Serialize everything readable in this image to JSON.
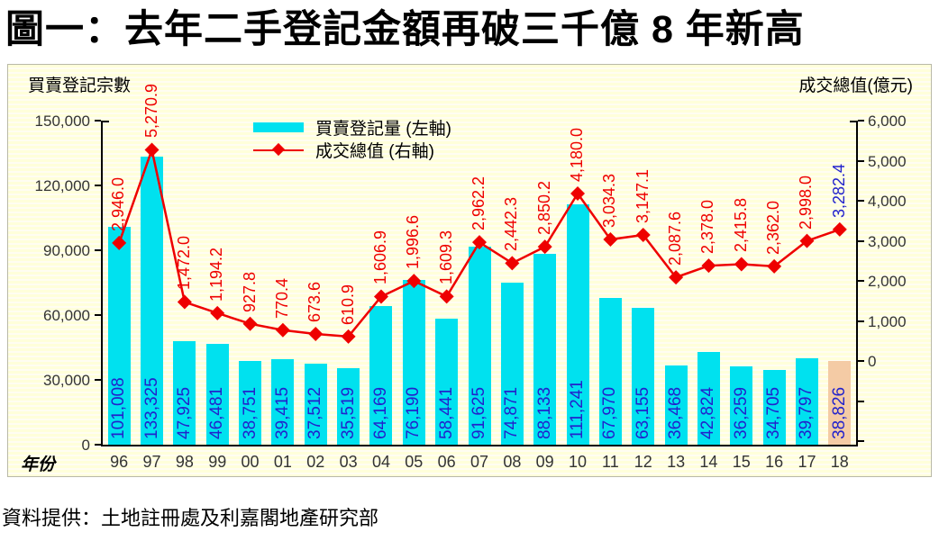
{
  "title": "圖一：去年二手登記金額再破三千億 8 年新高",
  "source_note": "資料提供：土地註冊處及利嘉閣地產研究部",
  "legend": {
    "bar_label": "買賣登記量 (左軸)",
    "line_label": "成交總值 (右軸)"
  },
  "axes": {
    "left_title": "買賣登記宗數",
    "right_title": "成交總值(億元)",
    "x_title": "年份"
  },
  "colors": {
    "bar": "#00E1EF",
    "last_bar": "#F4CBA5",
    "line": "#EE0000",
    "bar_value_label": "#2222CC",
    "line_value_label": "#EE0000",
    "last_line_value_label": "#2222CC",
    "axis_text": "#333333",
    "plot_bg": "#FFFFDA"
  },
  "chart_data": {
    "type": "bar",
    "subtype": "bar-line-combo-dual-axis",
    "title": "圖一：去年二手登記金額再破三千億 8 年新高",
    "xlabel": "年份",
    "grid": false,
    "legend_position": "top-center-inside",
    "categories": [
      "96",
      "97",
      "98",
      "99",
      "00",
      "01",
      "02",
      "03",
      "04",
      "05",
      "06",
      "07",
      "08",
      "09",
      "10",
      "11",
      "12",
      "13",
      "14",
      "15",
      "16",
      "17",
      "18"
    ],
    "series": [
      {
        "name": "買賣登記量 (左軸)",
        "type": "bar",
        "axis": "left",
        "values": [
          101008,
          133325,
          47925,
          46481,
          38751,
          39415,
          37512,
          35519,
          64169,
          76190,
          58441,
          91625,
          74871,
          88133,
          111241,
          67970,
          63155,
          36468,
          42824,
          36259,
          34705,
          39797,
          38826
        ],
        "labels": [
          "101,008",
          "133,325",
          "47,925",
          "46,481",
          "38,751",
          "39,415",
          "37,512",
          "35,519",
          "64,169",
          "76,190",
          "58,441",
          "91,625",
          "74,871",
          "88,133",
          "111,241",
          "67,970",
          "63,155",
          "36,468",
          "42,824",
          "36,259",
          "34,705",
          "39,797",
          "38,826"
        ]
      },
      {
        "name": "成交總值 (右軸)",
        "type": "line",
        "axis": "right",
        "values": [
          2946.0,
          5270.9,
          1472.0,
          1194.2,
          927.8,
          770.4,
          673.6,
          610.9,
          1606.9,
          1996.6,
          1609.3,
          2962.2,
          2442.3,
          2850.2,
          4180.0,
          3034.3,
          3147.1,
          2087.6,
          2378.0,
          2415.8,
          2362.0,
          2998.0,
          3282.4
        ],
        "labels": [
          "2,946.0",
          "5,270.9",
          "1,472.0",
          "1,194.2",
          "927.8",
          "770.4",
          "673.6",
          "610.9",
          "1,606.9",
          "1,996.6",
          "1,609.3",
          "2,962.2",
          "2,442.3",
          "2,850.2",
          "4,180.0",
          "3,034.3",
          "3,147.1",
          "2,087.6",
          "2,378.0",
          "2,415.8",
          "2,362.0",
          "2,998.0",
          "3,282.4"
        ]
      }
    ],
    "left_axis": {
      "title": "買賣登記宗數",
      "min": 0,
      "max": 150000,
      "tick_step": 30000,
      "tick_labels": [
        "150,000",
        "120,000",
        "90,000",
        "60,000",
        "30,000",
        "0"
      ],
      "tick_values": [
        150000,
        120000,
        90000,
        60000,
        30000,
        0
      ]
    },
    "right_axis": {
      "title": "成交總值(億元)",
      "labeled_min": 0,
      "max": 6000,
      "tick_step": 1000,
      "tick_labels": [
        "6,000",
        "5,000",
        "4,000",
        "3,000",
        "2,000",
        "1,000",
        "0"
      ],
      "tick_values": [
        6000,
        5000,
        4000,
        3000,
        2000,
        1000,
        0
      ],
      "unlabeled_tick_values": [
        -1000,
        -2000
      ]
    },
    "highlight": {
      "last_bar_uses_alt_color": true,
      "last_line_label_uses_alt_color": true
    }
  }
}
